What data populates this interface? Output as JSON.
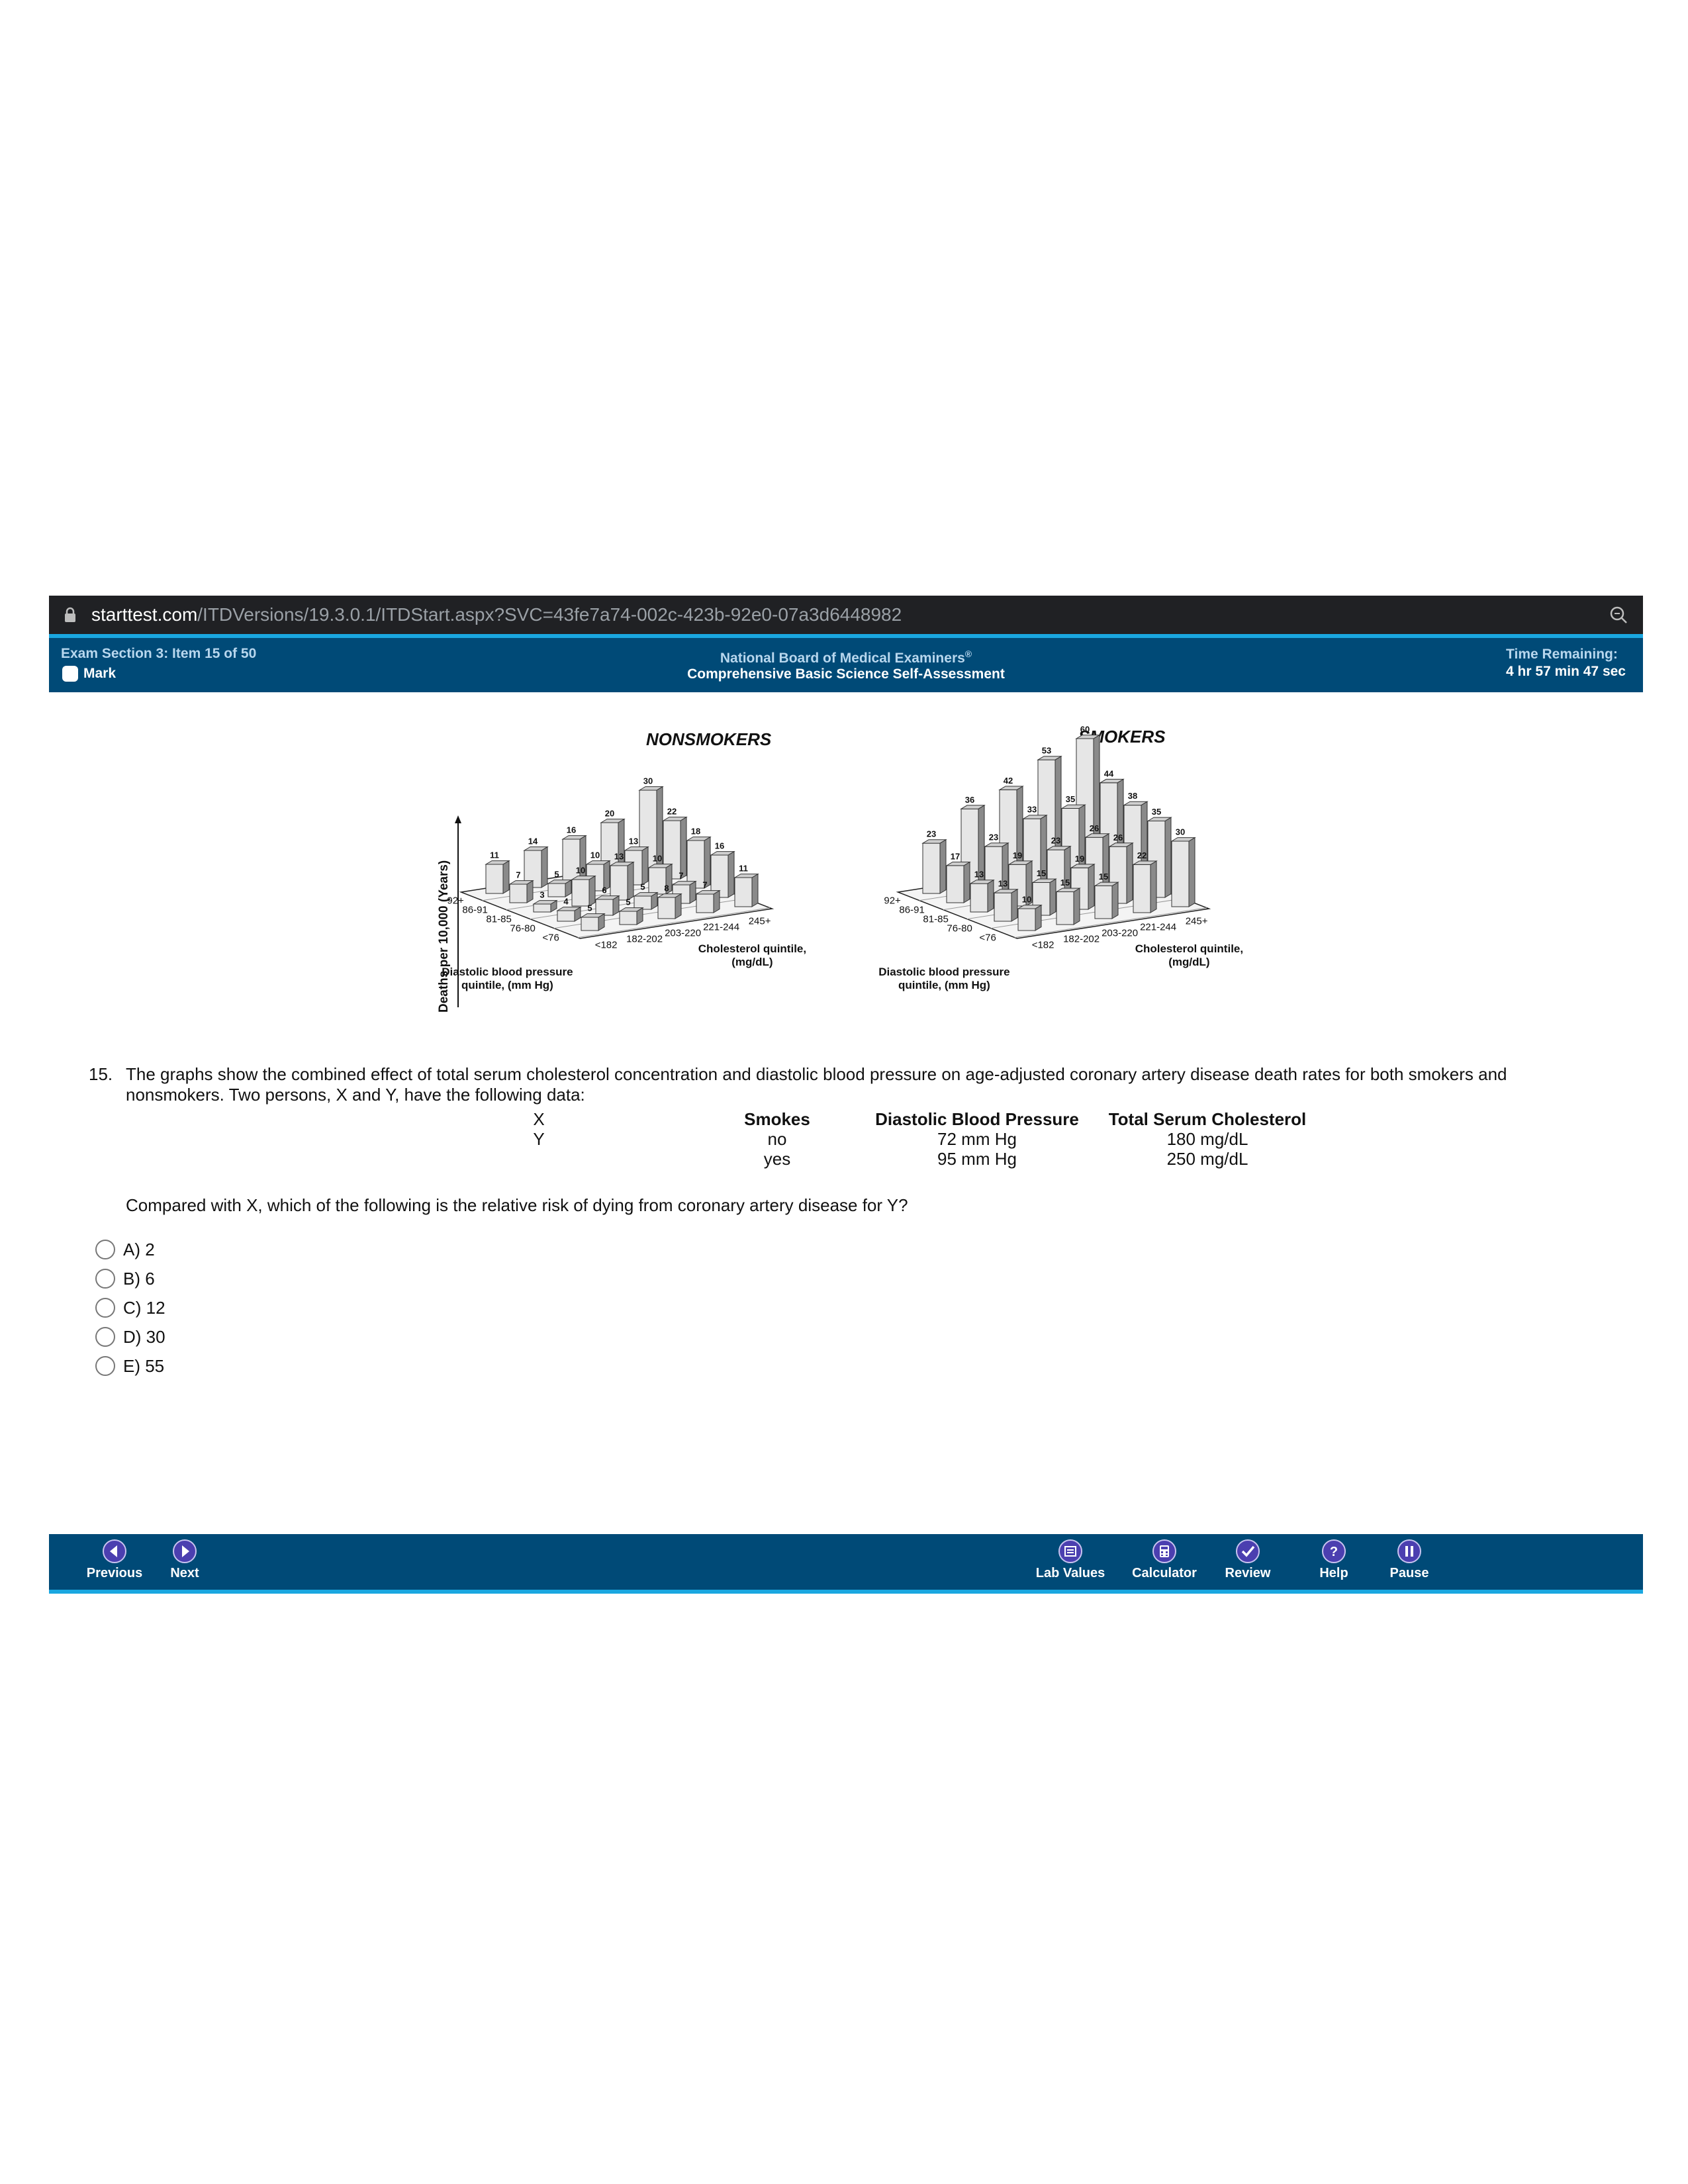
{
  "browser": {
    "url_domain": "starttest.com",
    "url_path": "/ITDVersions/19.3.0.1/ITDStart.aspx?SVC=43fe7a74-002c-423b-92e0-07a3d6448982"
  },
  "header": {
    "item_info": "Exam Section 3: Item 15 of 50",
    "mark_label": "Mark",
    "org_name": "National Board of Medical Examiners",
    "org_mark": "®",
    "exam_name": "Comprehensive Basic Science Self-Assessment",
    "time_label": "Time Remaining:",
    "time_value": "4 hr 57 min 47 sec"
  },
  "figure": {
    "y_axis_label": "Deaths per 10,000 (Years)",
    "bp_categories": [
      "92+",
      "86-91",
      "81-85",
      "76-80",
      "<76"
    ],
    "chol_categories": [
      "<182",
      "182-202",
      "203-220",
      "221-244",
      "245+"
    ],
    "bp_axis_title": [
      "Diastolic blood pressure",
      "quintile, (mm Hg)"
    ],
    "chol_axis_title": [
      "Cholesterol quintile,",
      "(mg/dL)"
    ],
    "nonsmokers": {
      "title": "NONSMOKERS",
      "grid": [
        [
          11,
          14,
          16,
          20,
          30
        ],
        [
          7,
          5,
          10,
          13,
          22
        ],
        [
          3,
          10,
          13,
          10,
          18
        ],
        [
          4,
          6,
          5,
          7,
          16
        ],
        [
          5,
          5,
          8,
          7,
          11
        ]
      ]
    },
    "smokers": {
      "title": "SMOKERS",
      "grid": [
        [
          23,
          36,
          42,
          53,
          60
        ],
        [
          17,
          23,
          33,
          35,
          44
        ],
        [
          13,
          19,
          23,
          26,
          38
        ],
        [
          13,
          15,
          19,
          26,
          35
        ],
        [
          10,
          15,
          15,
          22,
          30
        ]
      ]
    }
  },
  "question": {
    "number": "15.",
    "stem": "The graphs show the combined effect of total serum cholesterol concentration and diastolic blood pressure on age-adjusted coronary artery disease death rates for both smokers and nonsmokers. Two persons, X and Y, have the following data:",
    "table": {
      "headers": [
        "",
        "Smokes",
        "Diastolic Blood Pressure",
        "Total Serum Cholesterol"
      ],
      "rows": [
        [
          "X",
          "no",
          "72 mm Hg",
          "180 mg/dL"
        ],
        [
          "Y",
          "yes",
          "95 mm Hg",
          "250 mg/dL"
        ]
      ]
    },
    "prompt": "Compared with X, which of the following is the relative risk of dying from coronary artery disease for Y?",
    "options": [
      "A) 2",
      "B) 6",
      "C) 12",
      "D) 30",
      "E) 55"
    ]
  },
  "footer": {
    "previous": "Previous",
    "next": "Next",
    "lab_values": "Lab Values",
    "calculator": "Calculator",
    "review": "Review",
    "help": "Help",
    "pause": "Pause"
  },
  "colors": {
    "header_bg": "#004a77",
    "accent": "#1aa7e0",
    "header_muted_text": "#b8d7ee",
    "urlbar_bg": "#202124",
    "button_purple": "#4b3fb0"
  }
}
